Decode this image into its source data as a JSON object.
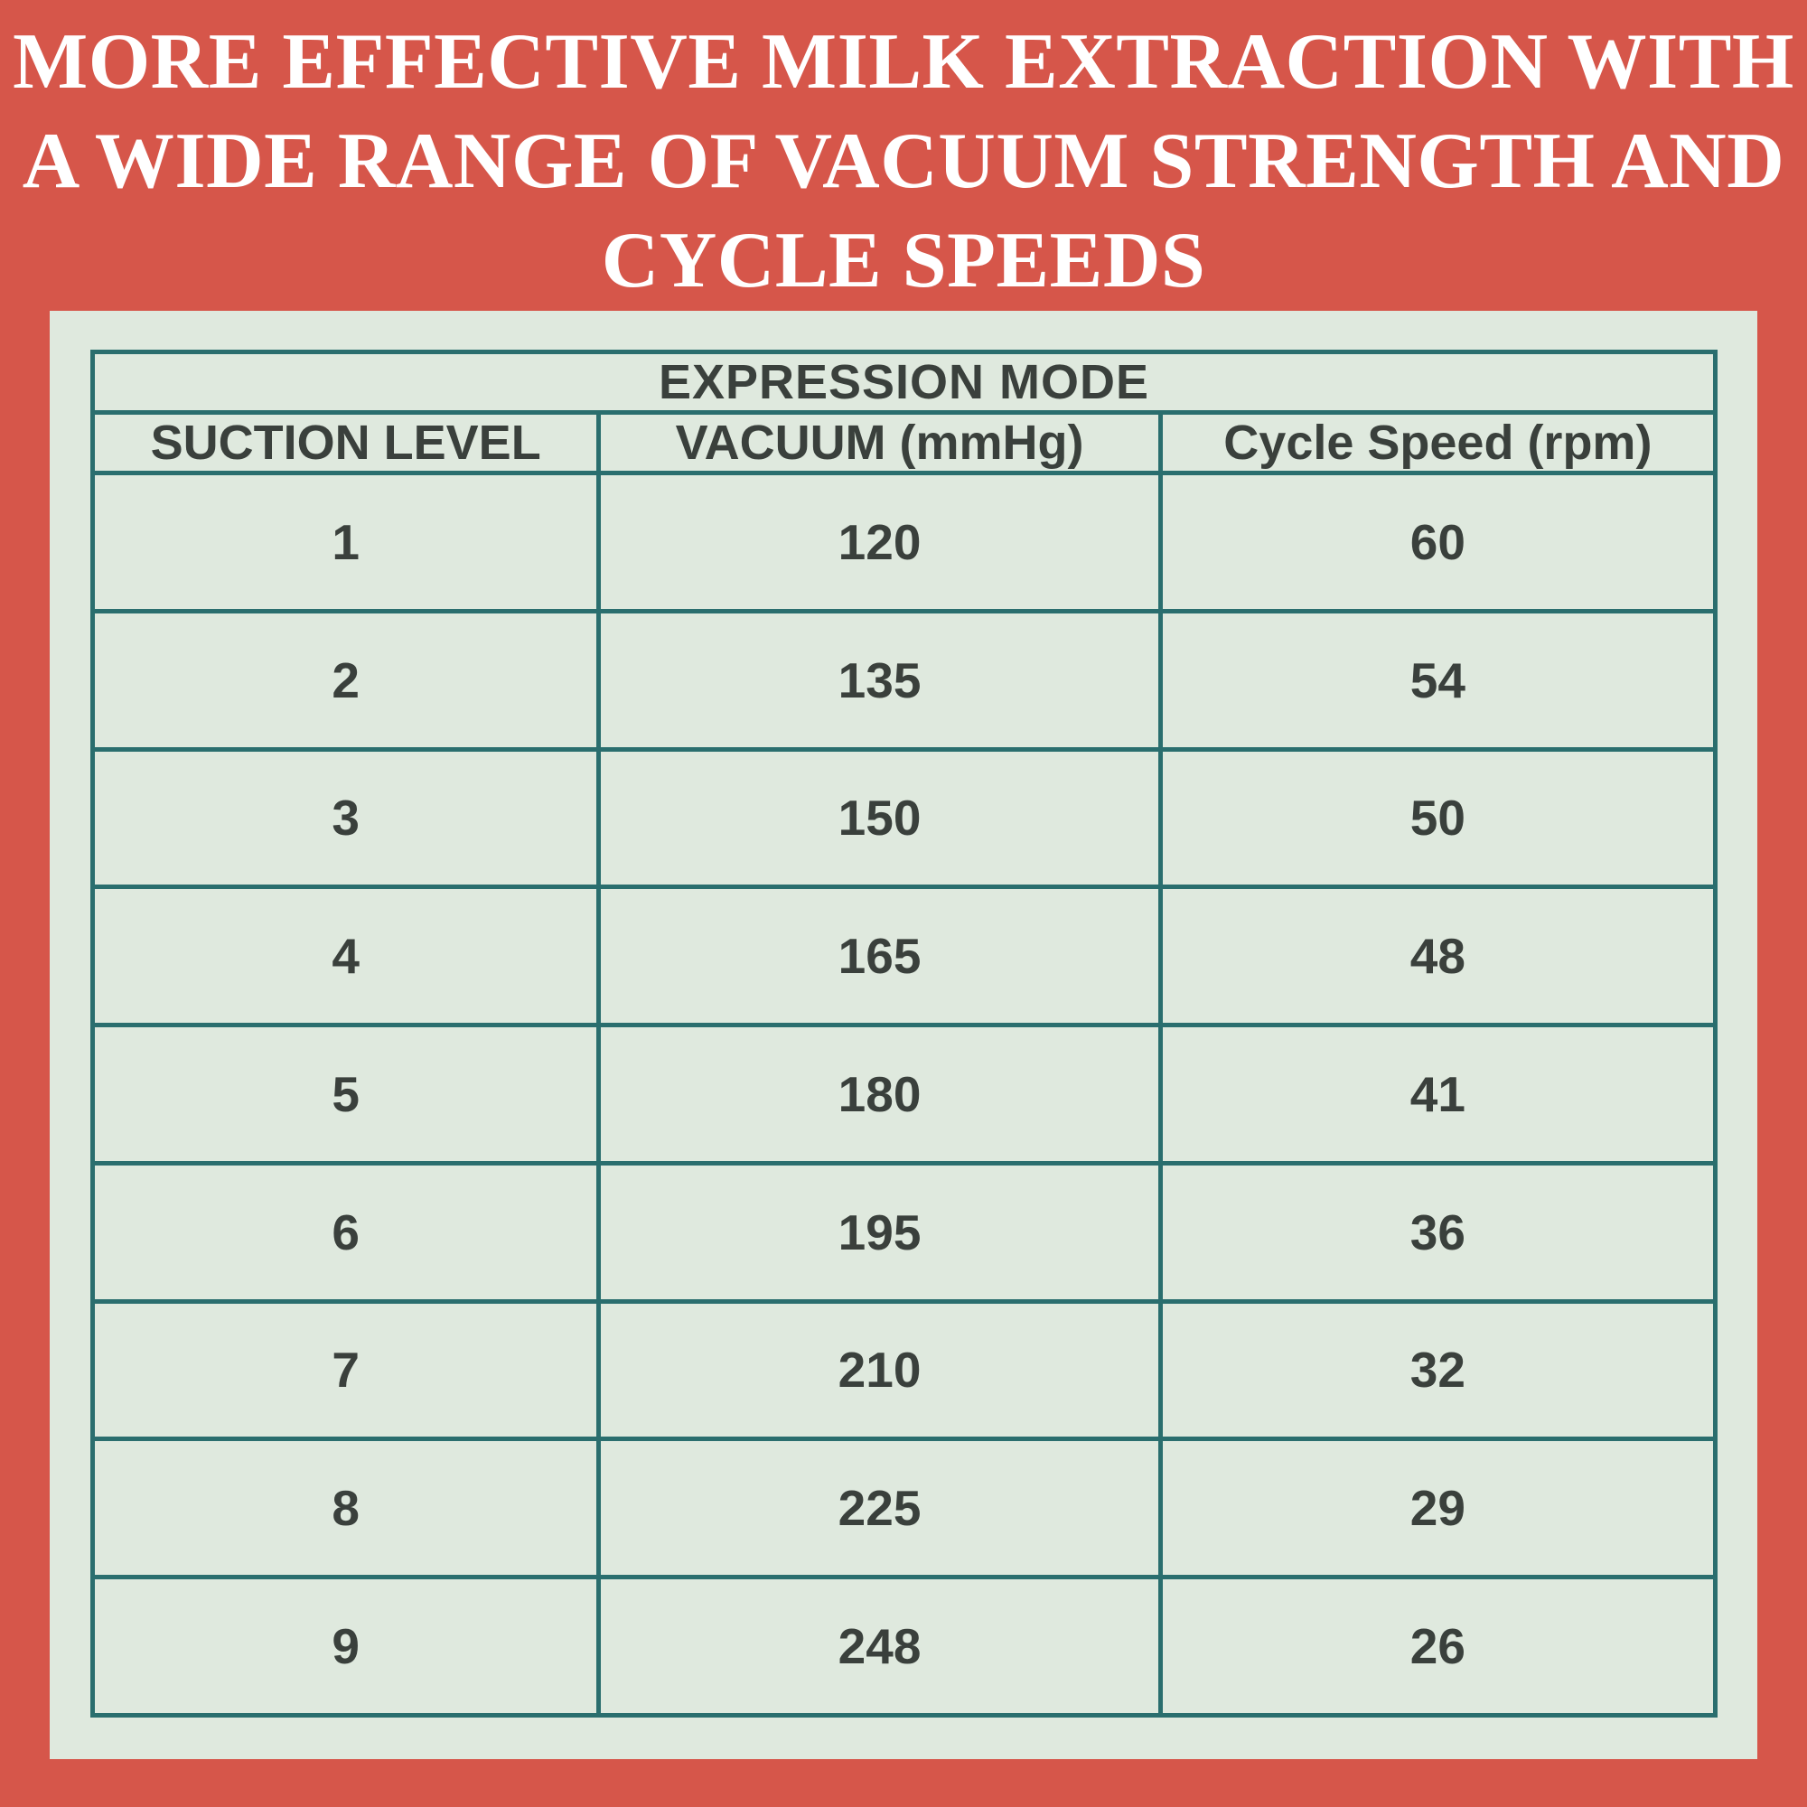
{
  "title": {
    "lines": [
      "MORE EFFECTIVE MILK EXTRACTION WITH",
      "A WIDE RANGE OF VACUUM STRENGTH AND",
      "CYCLE SPEEDS"
    ]
  },
  "table": {
    "group_header": "EXPRESSION MODE",
    "columns": [
      "SUCTION LEVEL",
      "VACUUM (mmHg)",
      "Cycle Speed (rpm)"
    ],
    "rows": [
      {
        "suction_level": "1",
        "vacuum_mmhg": "120",
        "cycle_speed_rpm": "60"
      },
      {
        "suction_level": "2",
        "vacuum_mmhg": "135",
        "cycle_speed_rpm": "54"
      },
      {
        "suction_level": "3",
        "vacuum_mmhg": "150",
        "cycle_speed_rpm": "50"
      },
      {
        "suction_level": "4",
        "vacuum_mmhg": "165",
        "cycle_speed_rpm": "48"
      },
      {
        "suction_level": "5",
        "vacuum_mmhg": "180",
        "cycle_speed_rpm": "41"
      },
      {
        "suction_level": "6",
        "vacuum_mmhg": "195",
        "cycle_speed_rpm": "36"
      },
      {
        "suction_level": "7",
        "vacuum_mmhg": "210",
        "cycle_speed_rpm": "32"
      },
      {
        "suction_level": "8",
        "vacuum_mmhg": "225",
        "cycle_speed_rpm": "29"
      },
      {
        "suction_level": "9",
        "vacuum_mmhg": "248",
        "cycle_speed_rpm": "26"
      }
    ]
  },
  "colors": {
    "background_red": "#d6564a",
    "panel_green": "#dfe9de",
    "border_teal": "#2a6e6e",
    "text_dark": "#3a403c",
    "title_white": "#ffffff"
  },
  "chart_data": {
    "type": "table",
    "title": "MORE EFFECTIVE MILK EXTRACTION WITH A WIDE RANGE OF VACUUM STRENGTH AND CYCLE SPEEDS",
    "group_header": "EXPRESSION MODE",
    "columns": [
      "SUCTION LEVEL",
      "VACUUM (mmHg)",
      "Cycle Speed (rpm)"
    ],
    "rows": [
      [
        1,
        120,
        60
      ],
      [
        2,
        135,
        54
      ],
      [
        3,
        150,
        50
      ],
      [
        4,
        165,
        48
      ],
      [
        5,
        180,
        41
      ],
      [
        6,
        195,
        36
      ],
      [
        7,
        210,
        32
      ],
      [
        8,
        225,
        29
      ],
      [
        9,
        248,
        26
      ]
    ]
  }
}
